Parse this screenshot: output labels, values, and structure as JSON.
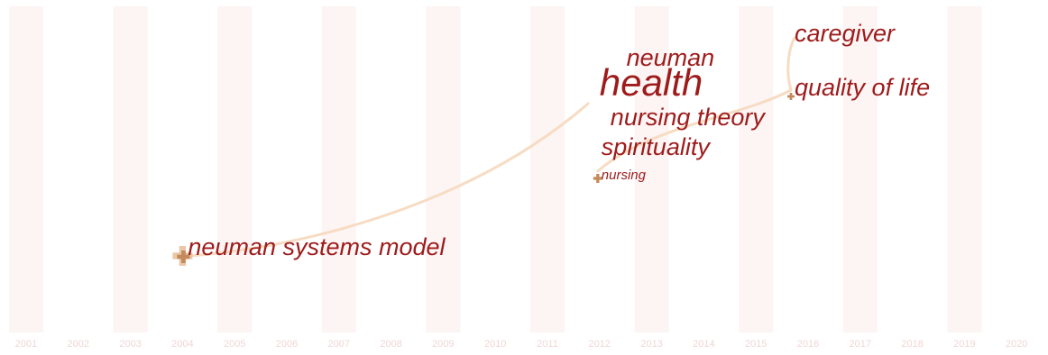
{
  "colors": {
    "band": "#fdf4f4",
    "year_label": "#f1d6d6",
    "term": "#9e1b1b",
    "term_ghost": "#e8c9c9",
    "link": "#f6dcc3",
    "marker_light": "#e9c7a8",
    "marker_dark": "#c48a5c"
  },
  "chart_data": {
    "type": "scatter",
    "title": "",
    "xlabel": "",
    "ylabel": "",
    "x_axis": {
      "years": [
        "2001",
        "2002",
        "2003",
        "2004",
        "2005",
        "2006",
        "2007",
        "2008",
        "2009",
        "2010",
        "2011",
        "2012",
        "2013",
        "2014",
        "2015",
        "2016",
        "2017",
        "2018",
        "2019",
        "2020"
      ]
    },
    "terms": [
      {
        "label": "neuman systems model",
        "year": 2004,
        "size": "large",
        "rank": 8
      },
      {
        "label": "health",
        "year": 2012,
        "size": "xlarge",
        "rank": 2
      },
      {
        "label": "neuman",
        "year": 2013,
        "size": "medium",
        "rank": 1
      },
      {
        "label": "nursing theory",
        "year": 2012,
        "size": "large",
        "rank": 3
      },
      {
        "label": "spirituality",
        "year": 2012,
        "size": "large",
        "rank": 4
      },
      {
        "label": "nursing",
        "year": 2012,
        "size": "small",
        "rank": 5
      },
      {
        "label": "caregiver",
        "year": 2016,
        "size": "medium",
        "rank": 0
      },
      {
        "label": "quality of life",
        "year": 2016,
        "size": "medium",
        "rank": 2
      }
    ],
    "links": [
      {
        "from_year": 2004,
        "to_year": 2012
      },
      {
        "from_year": 2012,
        "to_year": 2016
      }
    ],
    "grid": false,
    "legend": "none"
  }
}
